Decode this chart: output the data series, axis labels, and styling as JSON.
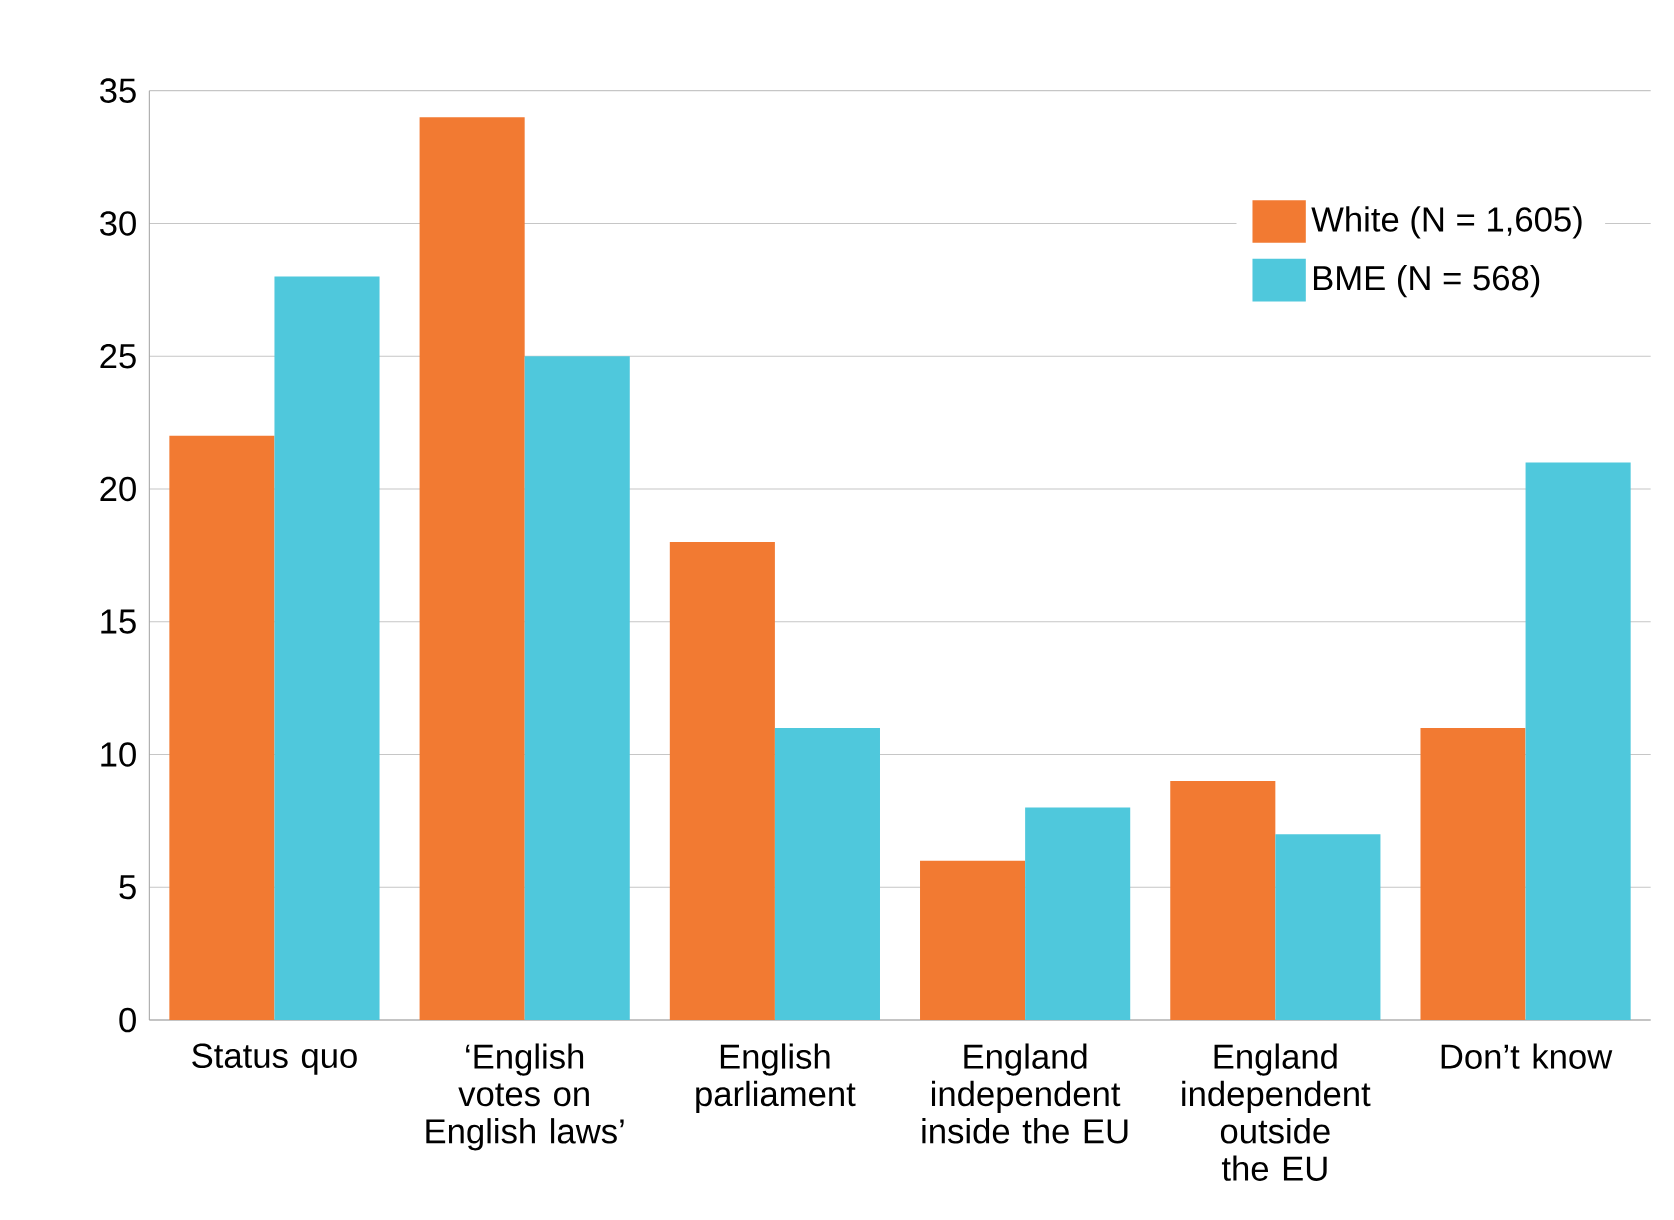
{
  "chart_data": {
    "type": "bar",
    "categories": [
      "Status quo",
      "‘English votes on English laws’",
      "English parliament",
      "England independent inside the EU",
      "England independent outside the EU",
      "Don’t know"
    ],
    "series": [
      {
        "name": "White (N = 1,605)",
        "color": "#f27a32",
        "values": [
          22,
          34,
          18,
          6,
          9,
          11
        ]
      },
      {
        "name": "BME (N = 568)",
        "color": "#4fc8dc",
        "values": [
          28,
          25,
          11,
          8,
          7,
          21
        ]
      }
    ],
    "ylim": [
      0,
      35
    ],
    "yticks": [
      0,
      5,
      10,
      15,
      20,
      25,
      30,
      35
    ],
    "grid": "y",
    "legend": "top right"
  }
}
